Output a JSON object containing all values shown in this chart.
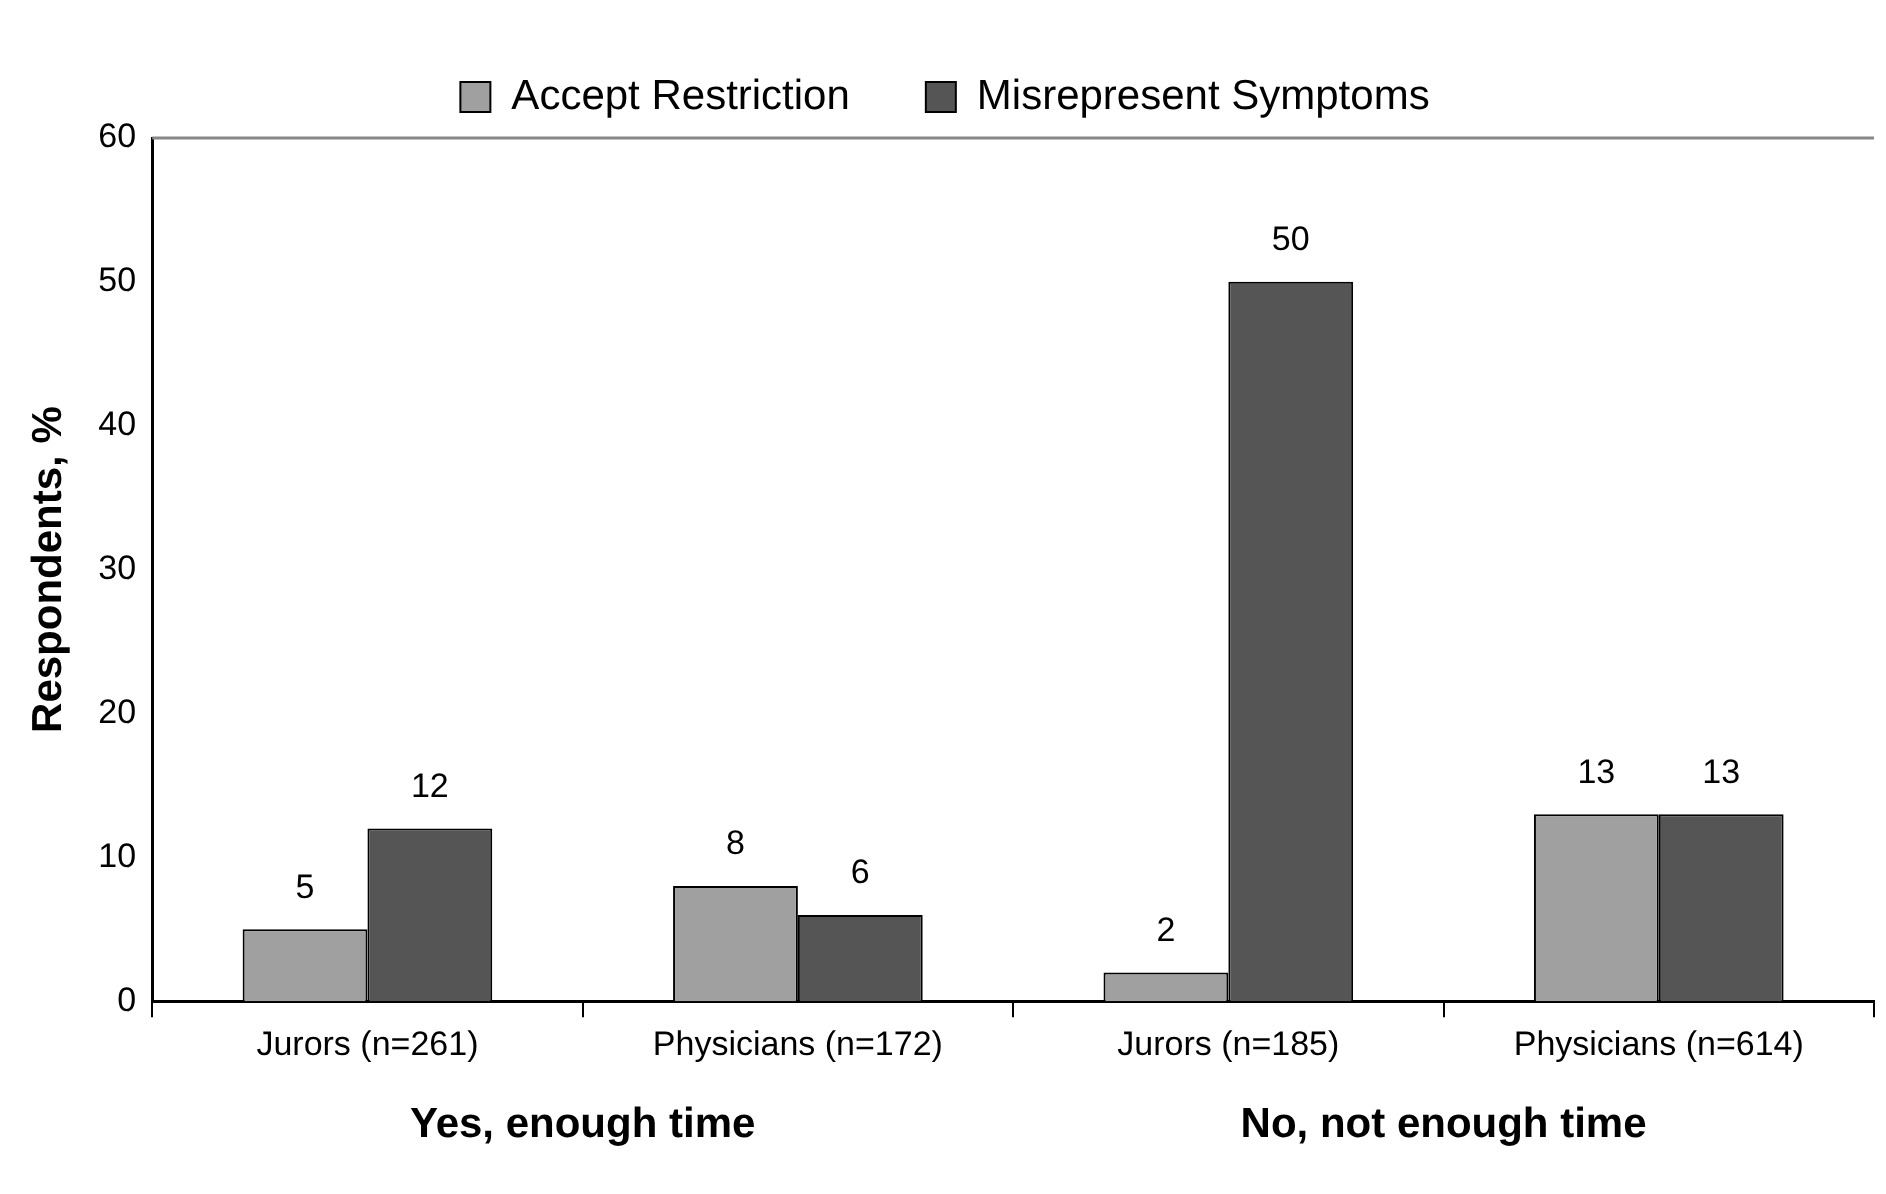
{
  "chart_data": {
    "type": "bar",
    "ylabel": "Respondents, %",
    "categories": [
      "Jurors (n=261)",
      "Physicians (n=172)",
      "Jurors (n=185)",
      "Physicians (n=614)"
    ],
    "series": [
      {
        "name": "Accept Restriction",
        "color": "#a0a0a0",
        "values": [
          5,
          8,
          2,
          13
        ]
      },
      {
        "name": "Misrepresent Symptoms",
        "color": "#555555",
        "values": [
          12,
          6,
          50,
          13
        ]
      }
    ],
    "ylim": [
      0,
      60
    ],
    "yticks": [
      0,
      10,
      20,
      30,
      40,
      50,
      60
    ],
    "grid": false,
    "legend": "top",
    "data_labels": true,
    "annotations": [
      "Yes, enough time",
      "No, not enough time"
    ]
  }
}
